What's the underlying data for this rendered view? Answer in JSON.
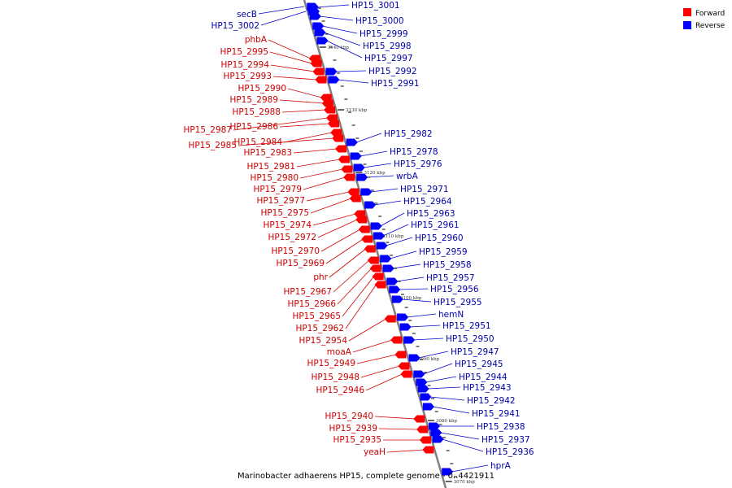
{
  "legend": [
    {
      "label": "Forward",
      "color": "#ff0000"
    },
    {
      "label": "Reverse",
      "color": "#0000ff"
    }
  ],
  "caption": "Marinobacter adhaerens HP15, complete genome - 0..4421911",
  "colors": {
    "forward": "#ff0000",
    "reverse": "#0000ff",
    "axis": "#808080",
    "forward_leader": "#d00000",
    "reverse_leader": "#0000d0"
  },
  "ticks": [
    "3070 kbp",
    "3080 kbp",
    "3090 kbp",
    "3100 kbp",
    "3110 kbp",
    "3120 kbp",
    "3130 kbp",
    "3140 kbp"
  ],
  "forward_genes": [
    "phbA",
    "HP15_2995",
    "HP15_2994",
    "HP15_2993",
    "HP15_2990",
    "HP15_2989",
    "HP15_2988",
    "HP15_2987",
    "HP15_2986",
    "HP15_2984",
    "HP15_2985",
    "HP15_2983",
    "HP15_2981",
    "HP15_2980",
    "HP15_2979",
    "HP15_2977",
    "HP15_2975",
    "HP15_2974",
    "HP15_2972",
    "HP15_2970",
    "HP15_2969",
    "phr",
    "HP15_2967",
    "HP15_2966",
    "HP15_2965",
    "HP15_2962",
    "HP15_2954",
    "moaA",
    "HP15_2949",
    "HP15_2948",
    "HP15_2946",
    "HP15_2940",
    "HP15_2939",
    "HP15_2935",
    "yeaH"
  ],
  "reverse_left_genes": [
    "secB",
    "HP15_3002"
  ],
  "reverse_genes": [
    "HP15_3001",
    "HP15_3000",
    "HP15_2999",
    "HP15_2998",
    "HP15_2997",
    "HP15_2992",
    "HP15_2991",
    "HP15_2982",
    "HP15_2978",
    "HP15_2976",
    "wrbA",
    "HP15_2971",
    "HP15_2964",
    "HP15_2963",
    "HP15_2961",
    "HP15_2960",
    "HP15_2959",
    "HP15_2958",
    "HP15_2957",
    "HP15_2956",
    "HP15_2955",
    "hemN",
    "HP15_2951",
    "HP15_2950",
    "HP15_2947",
    "HP15_2945",
    "HP15_2944",
    "HP15_2943",
    "HP15_2942",
    "HP15_2941",
    "HP15_2938",
    "HP15_2937",
    "HP15_2936",
    "hprA"
  ]
}
